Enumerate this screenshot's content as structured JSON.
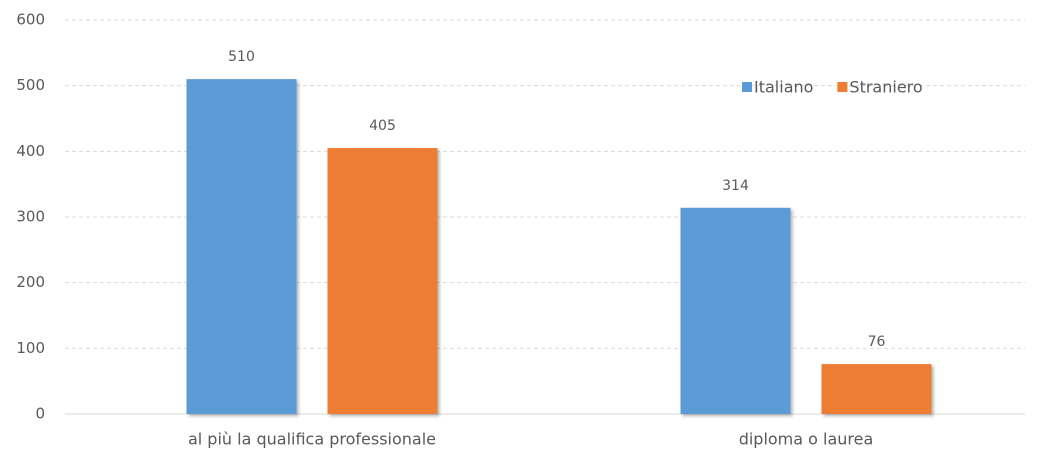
{
  "chart_data": {
    "type": "bar",
    "categories": [
      "al più la qualifica professionale",
      "diploma o laurea"
    ],
    "series": [
      {
        "name": "Italiano",
        "color": "#5b9bd5",
        "values": [
          510,
          314
        ]
      },
      {
        "name": "Straniero",
        "color": "#ed7d31",
        "values": [
          405,
          76
        ]
      }
    ],
    "ylim": [
      0,
      600
    ],
    "yticks": [
      0,
      100,
      200,
      300,
      400,
      500,
      600
    ],
    "grid": true,
    "legend": "top-right",
    "data_labels": true
  }
}
